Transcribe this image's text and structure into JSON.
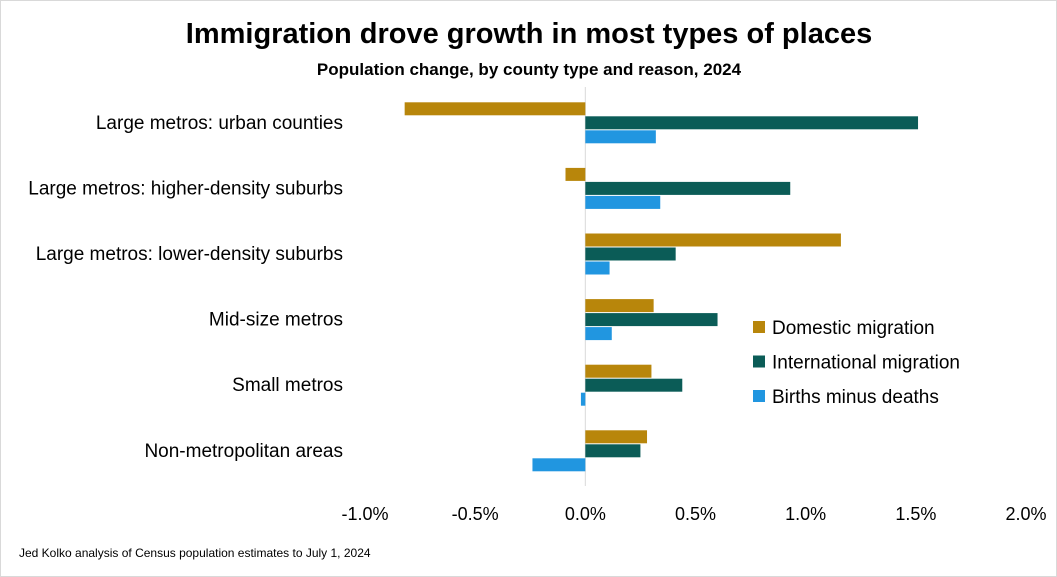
{
  "chart_data": {
    "type": "bar",
    "orientation": "horizontal",
    "title": "Immigration drove growth in most types of places",
    "subtitle": "Population change, by county type and reason, 2024",
    "categories": [
      "Large metros: urban counties",
      "Large metros: higher-density suburbs",
      "Large metros: lower-density suburbs",
      "Mid-size metros",
      "Small metros",
      "Non-metropolitan areas"
    ],
    "series": [
      {
        "name": "Domestic migration",
        "color": "#b8860b",
        "values": [
          -0.82,
          -0.09,
          1.16,
          0.31,
          0.3,
          0.28
        ]
      },
      {
        "name": "International migration",
        "color": "#0b5c57",
        "values": [
          1.51,
          0.93,
          0.41,
          0.6,
          0.44,
          0.25
        ]
      },
      {
        "name": "Births minus deaths",
        "color": "#2196e0",
        "values": [
          0.32,
          0.34,
          0.11,
          0.12,
          -0.02,
          -0.24
        ]
      }
    ],
    "xlim": [
      -1.0,
      2.0
    ],
    "xticks": [
      -1.0,
      -0.5,
      0.0,
      0.5,
      1.0,
      1.5,
      2.0
    ],
    "xtick_labels": [
      "-1.0%",
      "-0.5%",
      "0.0%",
      "0.5%",
      "1.0%",
      "1.5%",
      "2.0%"
    ],
    "xlabel": "",
    "ylabel": "",
    "grid": false,
    "legend_position": "right",
    "source": "Jed Kolko analysis of Census population estimates to July 1, 2024"
  }
}
